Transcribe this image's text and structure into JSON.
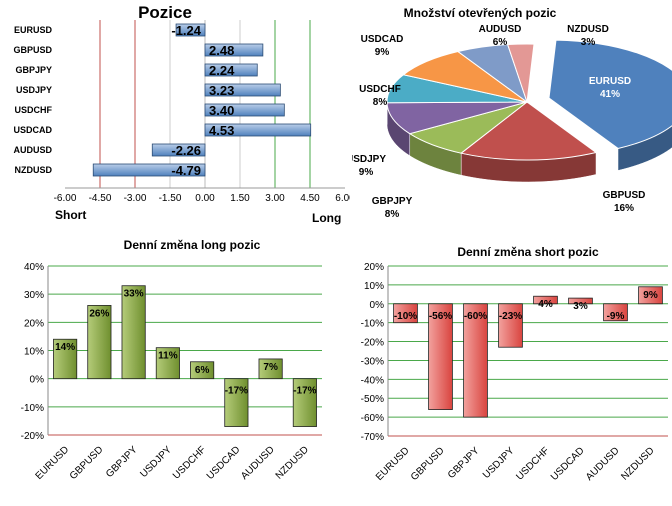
{
  "chart_data": [
    {
      "type": "bar",
      "orientation": "horizontal",
      "title": "Pozice",
      "categories": [
        "EURUSD",
        "GBPUSD",
        "GBPJPY",
        "USDJPY",
        "USDCHF",
        "USDCAD",
        "AUDUSD",
        "NZDUSD"
      ],
      "values": [
        -1.24,
        2.48,
        2.24,
        3.23,
        3.4,
        4.53,
        -2.26,
        -4.79
      ],
      "xticks": [
        "-6.00",
        "-4.50",
        "-3.00",
        "-1.50",
        "0.00",
        "1.50",
        "3.00",
        "4.50",
        "6.00"
      ],
      "xlim": [
        -6,
        6
      ],
      "left_label": "Short",
      "right_label": "Long",
      "colors": {
        "bar": "#4f81bd",
        "bar_dark": "#2c4d75",
        "bar_light": "#b9cde8",
        "red_line": "#c0504d",
        "green_line": "#4aa84a"
      }
    },
    {
      "type": "pie",
      "title": "Množství otevřených pozic",
      "slices": [
        {
          "name": "EURUSD",
          "value": 41,
          "color": "#4f81bd"
        },
        {
          "name": "GBPUSD",
          "value": 16,
          "color": "#c0504d"
        },
        {
          "name": "GBPJPY",
          "value": 8,
          "color": "#9bbb59"
        },
        {
          "name": "USDJPY",
          "value": 9,
          "color": "#8064a2"
        },
        {
          "name": "USDCHF",
          "value": 8,
          "color": "#4bacc6"
        },
        {
          "name": "USDCAD",
          "value": 9,
          "color": "#f79646"
        },
        {
          "name": "AUDUSD",
          "value": 6,
          "color": "#7f9bc8"
        },
        {
          "name": "NZDUSD",
          "value": 3,
          "color": "#e39895"
        }
      ]
    },
    {
      "type": "bar",
      "title": "Denní změna long pozic",
      "categories": [
        "EURUSD",
        "GBPUSD",
        "GBPJPY",
        "USDJPY",
        "USDCHF",
        "USDCAD",
        "AUDUSD",
        "NZDUSD"
      ],
      "values": [
        14,
        26,
        33,
        11,
        6,
        -17,
        7,
        -17
      ],
      "labels": [
        "14%",
        "26%",
        "33%",
        "11%",
        "6%",
        "-17%",
        "7%",
        "-17%"
      ],
      "yticks": [
        "40%",
        "30%",
        "20%",
        "10%",
        "0%",
        "-10%",
        "-20%"
      ],
      "ylim": [
        -20,
        40
      ],
      "colors": {
        "bar": "#6f8f2e",
        "bar_light": "#b5cc7a",
        "grid": "#4aa84a",
        "base": "#c0504d"
      }
    },
    {
      "type": "bar",
      "title": "Denní změna short pozic",
      "categories": [
        "EURUSD",
        "GBPUSD",
        "GBPJPY",
        "USDJPY",
        "USDCHF",
        "USDCAD",
        "AUDUSD",
        "NZDUSD"
      ],
      "values": [
        -10,
        -56,
        -60,
        -23,
        4,
        3,
        -9,
        9
      ],
      "labels": [
        "-10%",
        "-56%",
        "-60%",
        "-23%",
        "4%",
        "3%",
        "-9%",
        "9%"
      ],
      "yticks": [
        "20%",
        "10%",
        "0%",
        "-10%",
        "-20%",
        "-30%",
        "-40%",
        "-50%",
        "-60%",
        "-70%"
      ],
      "ylim": [
        -70,
        20
      ],
      "colors": {
        "bar": "#d9443f",
        "bar_light": "#f2a19e",
        "grid": "#4aa84a",
        "base": "#c0504d"
      }
    }
  ]
}
